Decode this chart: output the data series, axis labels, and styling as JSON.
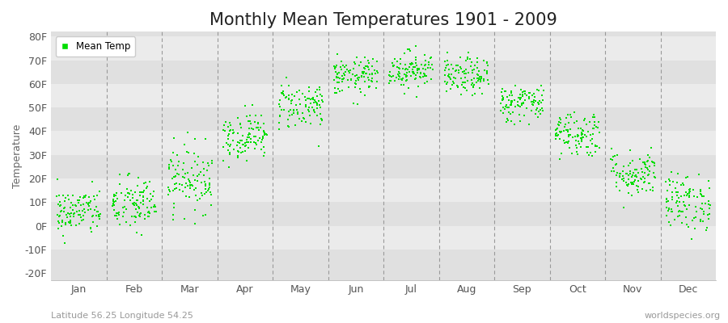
{
  "title": "Monthly Mean Temperatures 1901 - 2009",
  "ylabel": "Temperature",
  "xlabel": "",
  "ytick_labels": [
    "-20F",
    "-10F",
    "0F",
    "10F",
    "20F",
    "30F",
    "40F",
    "50F",
    "60F",
    "70F",
    "80F"
  ],
  "ytick_values": [
    -20,
    -10,
    0,
    10,
    20,
    30,
    40,
    50,
    60,
    70,
    80
  ],
  "ylim": [
    -23,
    82
  ],
  "months": [
    "Jan",
    "Feb",
    "Mar",
    "Apr",
    "May",
    "Jun",
    "Jul",
    "Aug",
    "Sep",
    "Oct",
    "Nov",
    "Dec"
  ],
  "dot_color": "#00DD00",
  "dot_size": 3,
  "background_color": "#FFFFFF",
  "band_colors": [
    "#E0E0E0",
    "#EBEBEB"
  ],
  "title_fontsize": 15,
  "axis_label_fontsize": 9,
  "tick_fontsize": 9,
  "legend_label": "Mean Temp",
  "subtitle_left": "Latitude 56.25 Longitude 54.25",
  "subtitle_right": "worldspecies.org",
  "n_years": 109,
  "monthly_means": [
    6,
    9,
    20,
    38,
    51,
    63,
    66,
    63,
    52,
    39,
    22,
    10
  ],
  "monthly_std": [
    5,
    6,
    7,
    5,
    5,
    4,
    4,
    4,
    4,
    5,
    5,
    6
  ],
  "seed": 42,
  "vline_color": "#999999",
  "vline_lw": 0.8
}
